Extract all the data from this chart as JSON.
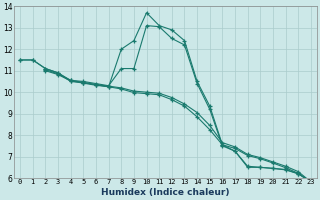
{
  "xlabel": "Humidex (Indice chaleur)",
  "bg_color": "#cce8e8",
  "grid_color": "#aacccc",
  "line_color": "#1a7a6e",
  "xlim": [
    -0.5,
    23.5
  ],
  "ylim": [
    6,
    14
  ],
  "xticks": [
    0,
    1,
    2,
    3,
    4,
    5,
    6,
    7,
    8,
    9,
    10,
    11,
    12,
    13,
    14,
    15,
    16,
    17,
    18,
    19,
    20,
    21,
    22,
    23
  ],
  "yticks": [
    6,
    7,
    8,
    9,
    10,
    11,
    12,
    13,
    14
  ],
  "curves": [
    {
      "x": [
        0,
        1,
        2,
        3,
        4,
        5,
        6,
        7,
        8,
        9,
        10,
        11,
        12,
        13,
        14,
        15,
        16,
        17,
        18,
        19,
        20,
        21,
        22,
        23
      ],
      "y": [
        11.5,
        11.5,
        11.1,
        10.9,
        10.5,
        10.45,
        10.35,
        10.25,
        12.0,
        12.4,
        13.7,
        13.1,
        12.9,
        12.4,
        10.5,
        9.35,
        7.55,
        7.25,
        6.5,
        6.5,
        6.45,
        6.4,
        6.2,
        5.85
      ]
    },
    {
      "x": [
        0,
        1,
        2,
        3,
        4,
        5,
        6,
        7,
        8,
        9,
        10,
        11,
        12,
        13,
        14,
        15,
        16,
        17,
        18,
        19,
        20,
        21,
        22,
        23
      ],
      "y": [
        11.5,
        11.5,
        11.1,
        10.9,
        10.55,
        10.5,
        10.4,
        10.3,
        11.1,
        11.1,
        13.1,
        13.05,
        12.5,
        12.2,
        10.4,
        9.2,
        7.5,
        7.25,
        6.55,
        6.5,
        6.45,
        6.38,
        6.2,
        5.82
      ]
    },
    {
      "x": [
        2,
        3,
        4,
        5,
        6,
        7,
        8,
        9,
        10,
        11,
        12,
        13,
        14,
        15,
        16,
        17,
        18,
        19,
        20,
        21,
        22,
        23
      ],
      "y": [
        11.05,
        10.85,
        10.55,
        10.45,
        10.35,
        10.28,
        10.2,
        10.05,
        10.0,
        9.95,
        9.75,
        9.45,
        9.05,
        8.45,
        7.65,
        7.45,
        7.1,
        6.95,
        6.75,
        6.55,
        6.3,
        5.82
      ]
    },
    {
      "x": [
        2,
        3,
        4,
        5,
        6,
        7,
        8,
        9,
        10,
        11,
        12,
        13,
        14,
        15,
        16,
        17,
        18,
        19,
        20,
        21,
        22,
        23
      ],
      "y": [
        11.0,
        10.82,
        10.52,
        10.42,
        10.32,
        10.25,
        10.15,
        9.98,
        9.93,
        9.88,
        9.65,
        9.35,
        8.85,
        8.25,
        7.55,
        7.38,
        7.05,
        6.9,
        6.7,
        6.48,
        6.22,
        5.78
      ]
    }
  ]
}
